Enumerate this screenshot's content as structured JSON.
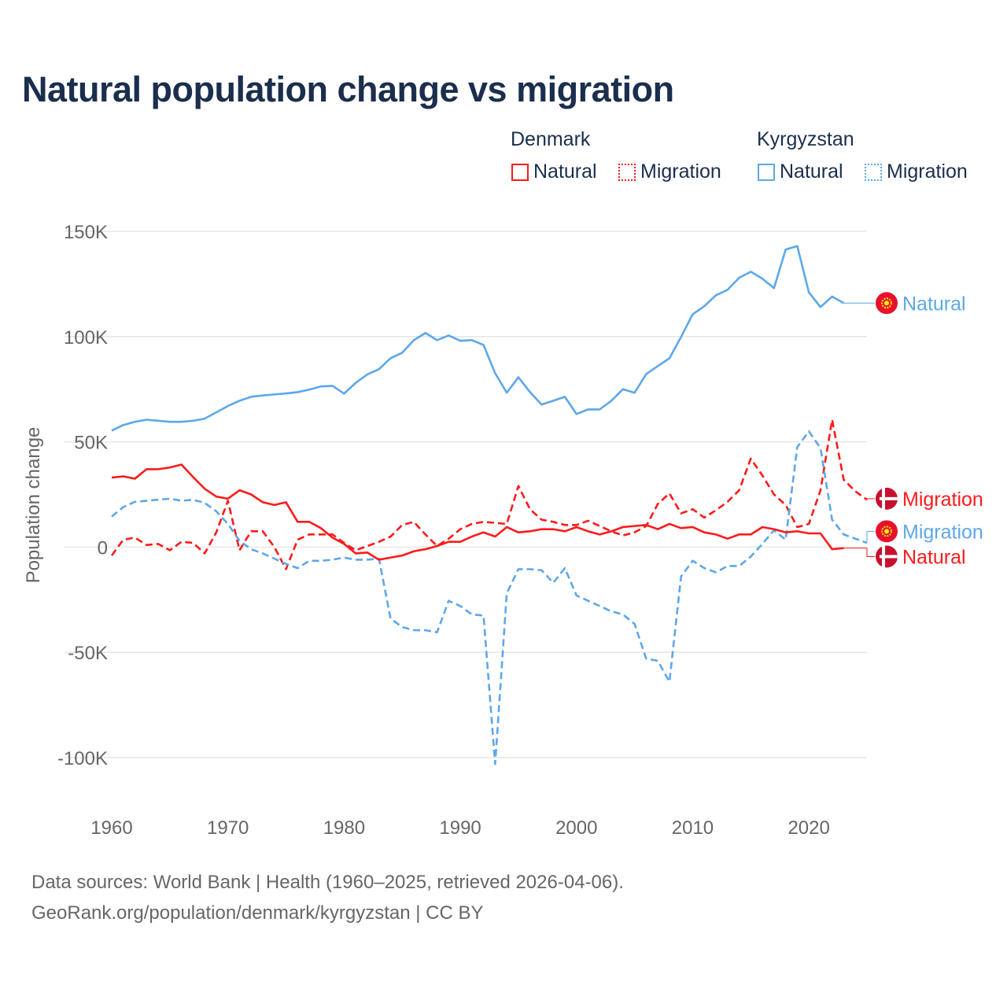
{
  "title": "Natural population change vs migration",
  "legend": {
    "groups": [
      {
        "name": "Denmark",
        "items": [
          {
            "label": "Natural",
            "style": "solid"
          },
          {
            "label": "Migration",
            "style": "dotted"
          }
        ],
        "color": "#ff1a1a"
      },
      {
        "name": "Kyrgyzstan",
        "items": [
          {
            "label": "Natural",
            "style": "solid"
          },
          {
            "label": "Migration",
            "style": "dotted"
          }
        ],
        "color": "#5ea7e9"
      }
    ]
  },
  "footer": {
    "line1": "Data sources: World Bank | Health (1960–2025, retrieved 2026-04-06).",
    "line2": "GeoRank.org/population/denmark/kyrgyzstan | CC BY"
  },
  "chart_data": {
    "type": "line",
    "title": "Natural population change vs migration",
    "xlabel": "",
    "ylabel": "Population change",
    "xlim": [
      1960,
      2025
    ],
    "ylim": [
      -100000,
      150000
    ],
    "x_ticks": [
      1960,
      1970,
      1980,
      1990,
      2000,
      2010,
      2020
    ],
    "y_ticks": [
      {
        "v": 150000,
        "label": "150K"
      },
      {
        "v": 100000,
        "label": "100K"
      },
      {
        "v": 50000,
        "label": "50K"
      },
      {
        "v": 0,
        "label": "0"
      },
      {
        "v": -50000,
        "label": "-50K"
      },
      {
        "v": -100000,
        "label": "-100K"
      }
    ],
    "grid": true,
    "legend_position": "top-right",
    "x_start": 1960,
    "series": [
      {
        "name": "Kyrgyzstan Natural",
        "end_label": "Natural",
        "country": "Kyrgyzstan",
        "color": "#5ea7e9",
        "dash": false,
        "values_k": [
          55.3,
          58,
          59.5,
          60.5,
          60,
          59.5,
          59.5,
          60,
          61,
          64,
          67,
          69.5,
          71.4,
          72,
          72.5,
          73,
          73.6,
          74.8,
          76.3,
          76.6,
          72.9,
          78,
          82,
          84.5,
          89.7,
          92.3,
          98.3,
          101.7,
          98.3,
          100.5,
          98,
          98.3,
          96,
          82.6,
          73.3,
          80.7,
          73.6,
          67.7,
          69.5,
          71.4,
          63.2,
          65.4,
          65.4,
          69.5,
          75,
          73.3,
          82.2,
          86,
          89.7,
          99.8,
          110.6,
          114.4,
          119.6,
          122.2,
          127.9,
          130.8,
          127.5,
          123,
          141.3,
          143,
          121,
          114,
          119,
          115.9
        ],
        "label_k": 115.9
      },
      {
        "name": "Denmark Migration",
        "end_label": "Migration",
        "country": "Denmark",
        "color": "#ff1a1a",
        "dash": true,
        "values_k": [
          -4,
          3.5,
          4.5,
          1,
          1.5,
          -1.5,
          2.5,
          2,
          -3,
          7,
          22,
          -1.5,
          7.5,
          7.5,
          0,
          -10.5,
          3.5,
          6,
          6,
          6,
          2,
          -1.5,
          0.5,
          2.5,
          5,
          10.5,
          12,
          6,
          0.5,
          4,
          8.5,
          11,
          12,
          11.5,
          11,
          29,
          18,
          13,
          12,
          10.5,
          10.5,
          12.5,
          10,
          7.5,
          5.5,
          7,
          10,
          20.5,
          25.5,
          16,
          18,
          14,
          17.5,
          21.5,
          27,
          42,
          34,
          25,
          20,
          9.5,
          11,
          27,
          60.5,
          32,
          26.5,
          22.5
        ],
        "label_k": 23
      },
      {
        "name": "Kyrgyzstan Migration",
        "end_label": "Migration",
        "country": "Kyrgyzstan",
        "color": "#5ea7e9",
        "dash": true,
        "values_k": [
          14.5,
          19,
          21.5,
          22,
          22.5,
          23,
          22,
          22.5,
          21,
          17,
          11,
          3,
          -1,
          -3,
          -5.5,
          -8,
          -10,
          -6.5,
          -6.5,
          -6,
          -5,
          -6,
          -6,
          -5.5,
          -34,
          -38,
          -39.5,
          -39.5,
          -40.5,
          -25.5,
          -28,
          -32,
          -32.5,
          -103,
          -22,
          -10.5,
          -10.5,
          -11,
          -17,
          -10,
          -23,
          -25.5,
          -28,
          -30.5,
          -32,
          -36.5,
          -53,
          -54,
          -64,
          -14,
          -6.5,
          -10,
          -12,
          -9,
          -9,
          -4.5,
          1.5,
          8,
          3.5,
          47.5,
          55,
          47,
          13,
          6,
          4,
          2
        ],
        "label_k": 7.5
      },
      {
        "name": "Denmark Natural",
        "end_label": "Natural",
        "country": "Denmark",
        "color": "#ff1a1a",
        "dash": false,
        "values_k": [
          33,
          33.6,
          32.5,
          37,
          37,
          37.8,
          39.2,
          33.3,
          27.7,
          24,
          23,
          27,
          25,
          21.3,
          20,
          21.3,
          12,
          12,
          9,
          4.5,
          1.5,
          -3,
          -2.6,
          -6,
          -5,
          -4,
          -2,
          -1,
          0.5,
          2.5,
          2.5,
          5,
          7,
          5,
          9.5,
          7,
          7.5,
          8.5,
          8.5,
          7.5,
          9.5,
          7.5,
          6,
          7.5,
          9.5,
          10,
          10.5,
          8.5,
          11,
          9,
          9.5,
          7,
          6,
          4,
          6,
          6,
          9.5,
          8.5,
          7,
          7.5,
          6.5,
          6.5,
          -1,
          -0.5
        ],
        "label_k": -4.5
      }
    ]
  }
}
